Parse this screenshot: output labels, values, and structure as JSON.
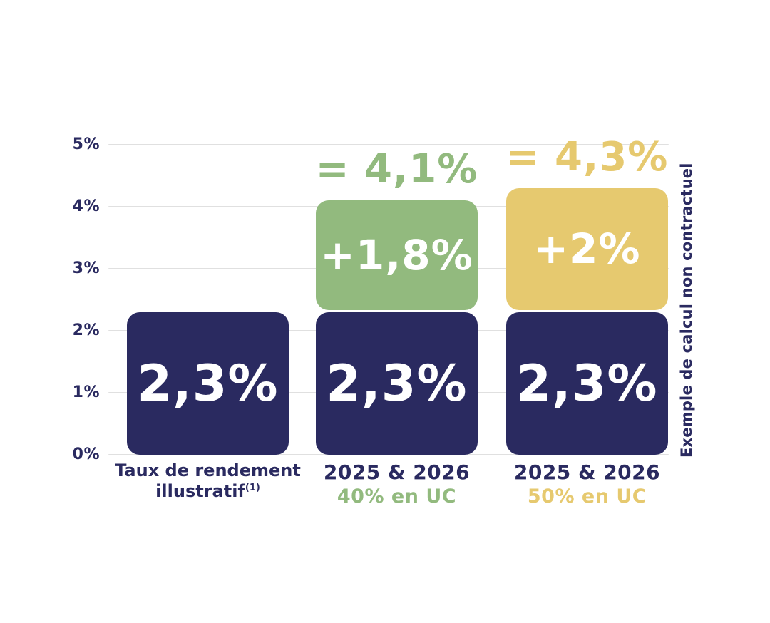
{
  "chart_data": {
    "type": "bar",
    "stacked": true,
    "title": "",
    "y_axis": {
      "min": 0,
      "max": 5,
      "unit": "%",
      "grid": true,
      "ticks": [
        "0%",
        "1%",
        "2%",
        "3%",
        "4%",
        "5%"
      ]
    },
    "categories": [
      {
        "lines": [
          "Taux de rendement",
          "illustratif"
        ],
        "superscript": "(1)",
        "sublabel": "",
        "accent_color": "#2a2a60"
      },
      {
        "lines": [
          "2025 & 2026"
        ],
        "superscript": "",
        "sublabel": "40% en UC",
        "accent_color": "#92ba7e"
      },
      {
        "lines": [
          "2025 & 2026"
        ],
        "superscript": "",
        "sublabel": "50% en UC",
        "accent_color": "#e6c96f"
      }
    ],
    "bars": [
      {
        "segments": [
          {
            "value": 2.3,
            "label": "2,3%",
            "color": "#2a2a60"
          }
        ],
        "total": null
      },
      {
        "segments": [
          {
            "value": 2.3,
            "label": "2,3%",
            "color": "#2a2a60"
          },
          {
            "value": 1.8,
            "label": "+1,8%",
            "color": "#92ba7e"
          }
        ],
        "total": {
          "value": 4.1,
          "label": "= 4,1%",
          "color": "#92ba7e"
        }
      },
      {
        "segments": [
          {
            "value": 2.3,
            "label": "2,3%",
            "color": "#2a2a60"
          },
          {
            "value": 2.0,
            "label": "+2%",
            "color": "#e6c96f"
          }
        ],
        "total": {
          "value": 4.3,
          "label": "= 4,3%",
          "color": "#e6c96f"
        }
      }
    ],
    "side_note": "Exemple de calcul non contractuel",
    "legend": null
  },
  "colors": {
    "navy": "#2a2a60",
    "green": "#92ba7e",
    "gold": "#e6c96f",
    "gridline": "#e0e0e0",
    "background": "#ffffff",
    "bar_text": "#ffffff"
  }
}
